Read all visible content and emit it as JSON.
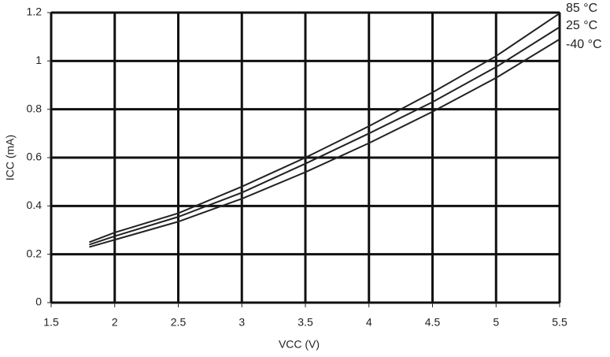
{
  "chart_data": {
    "type": "line",
    "x_label": "VCC (V)",
    "y_label": "ICC (mA)",
    "x": [
      1.8,
      2,
      2.5,
      3,
      3.5,
      4,
      4.5,
      5,
      5.5
    ],
    "series": [
      {
        "name": "85 °C",
        "color": "#222222",
        "values": [
          0.25,
          0.29,
          0.37,
          0.48,
          0.6,
          0.73,
          0.87,
          1.02,
          1.197
        ]
      },
      {
        "name": "25 °C",
        "color": "#222222",
        "values": [
          0.24,
          0.275,
          0.355,
          0.455,
          0.575,
          0.7,
          0.83,
          0.975,
          1.14
        ]
      },
      {
        "name": "-40 °C",
        "color": "#222222",
        "values": [
          0.23,
          0.26,
          0.335,
          0.43,
          0.54,
          0.66,
          0.79,
          0.93,
          1.09
        ]
      }
    ],
    "xlim": [
      1.5,
      5.5
    ],
    "xticks": [
      1.5,
      2,
      2.5,
      3,
      3.5,
      4,
      4.5,
      5,
      5.5
    ],
    "ylim": [
      0,
      1.2
    ],
    "yticks": [
      0,
      0.2,
      0.4,
      0.6,
      0.8,
      1,
      1.2
    ],
    "grid": true
  }
}
